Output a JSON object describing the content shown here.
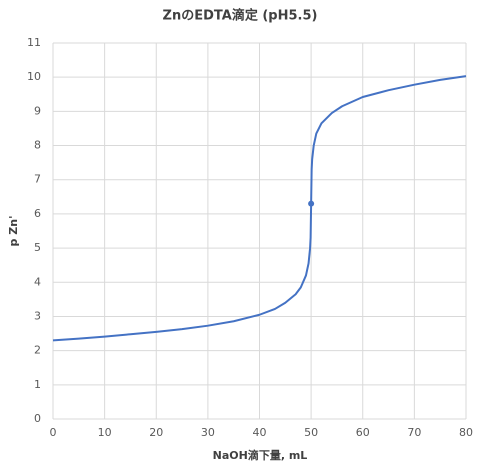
{
  "chart_data": {
    "type": "line",
    "title": "ZnのEDTA滴定 (pH5.5)",
    "x_label": "NaOH滴下量, mL",
    "y_label": "p Zn'",
    "color": "#4472c4",
    "x": [
      0,
      5,
      10,
      15,
      20,
      25,
      30,
      35,
      40,
      43,
      45,
      47,
      48,
      49,
      49.5,
      49.8,
      49.9,
      50,
      50.1,
      50.2,
      50.5,
      51,
      52,
      54,
      56,
      60,
      65,
      70,
      75,
      80
    ],
    "y": [
      2.3,
      2.35,
      2.41,
      2.48,
      2.55,
      2.63,
      2.73,
      2.86,
      3.05,
      3.22,
      3.4,
      3.65,
      3.85,
      4.2,
      4.55,
      5.0,
      5.3,
      6.3,
      7.3,
      7.6,
      8.0,
      8.35,
      8.65,
      8.95,
      9.15,
      9.42,
      9.62,
      9.78,
      9.92,
      10.03
    ],
    "marker": {
      "x": [
        50
      ],
      "y": [
        6.3
      ]
    },
    "xlim": [
      0,
      80
    ],
    "xticks": [
      0,
      10,
      20,
      30,
      40,
      50,
      60,
      70,
      80
    ],
    "ylim": [
      0,
      11
    ],
    "yticks": [
      0,
      1,
      2,
      3,
      4,
      5,
      6,
      7,
      8,
      9,
      10,
      11
    ],
    "grid": true
  }
}
